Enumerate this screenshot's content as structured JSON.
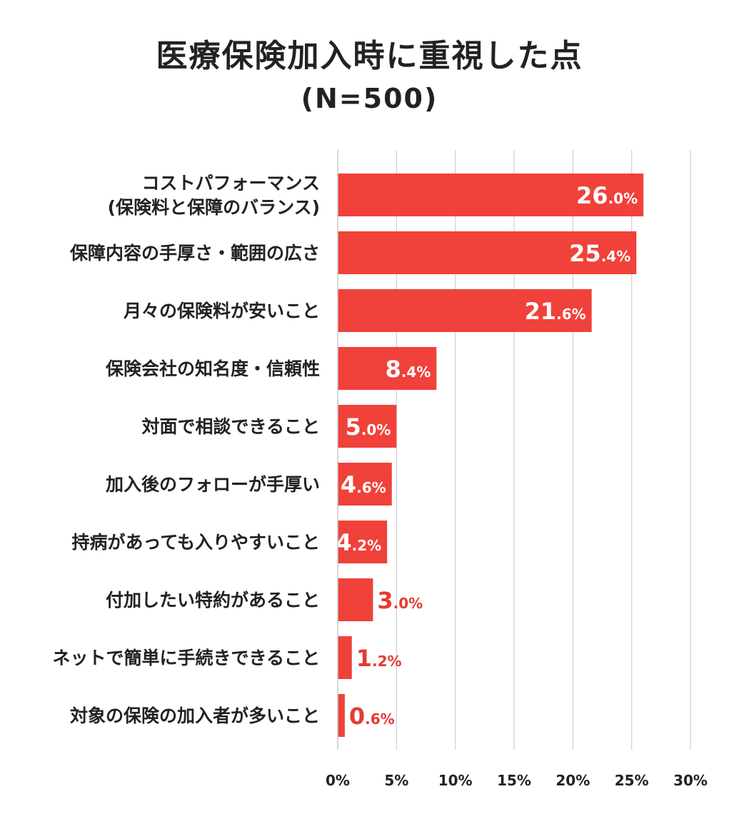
{
  "chart_data": {
    "type": "bar",
    "orientation": "horizontal",
    "title": "医療保険加入時に重視した点",
    "subtitle": "(N=500)",
    "categories": [
      [
        "コストパフォーマンス",
        "(保険料と保障のバランス)"
      ],
      [
        "保障内容の手厚さ・範囲の広さ"
      ],
      [
        "月々の保険料が安いこと"
      ],
      [
        "保険会社の知名度・信頼性"
      ],
      [
        "対面で相談できること"
      ],
      [
        "加入後のフォローが手厚い"
      ],
      [
        "持病があっても入りやすいこと"
      ],
      [
        "付加したい特約があること"
      ],
      [
        "ネットで簡単に手続きできること"
      ],
      [
        "対象の保険の加入者が多いこと"
      ]
    ],
    "values": [
      26.0,
      25.4,
      21.6,
      8.4,
      5.0,
      4.6,
      4.2,
      3.0,
      1.2,
      0.6
    ],
    "value_labels": [
      [
        "26",
        ".0%"
      ],
      [
        "25",
        ".4%"
      ],
      [
        "21",
        ".6%"
      ],
      [
        "8",
        ".4%"
      ],
      [
        "5",
        ".0%"
      ],
      [
        "4",
        ".6%"
      ],
      [
        "4",
        ".2%"
      ],
      [
        "3",
        ".0%"
      ],
      [
        "1",
        ".2%"
      ],
      [
        "0",
        ".6%"
      ]
    ],
    "xlim": [
      0,
      30
    ],
    "xticks": [
      "0%",
      "5%",
      "10%",
      "15%",
      "20%",
      "25%",
      "30%"
    ],
    "grid": true,
    "colors": {
      "bar": "#f0413a",
      "label_inside": "#ffffff",
      "label_outside": "#e53a32",
      "grid": "#d0d0d0",
      "axis": "#c8c8c8",
      "text": "#222222"
    }
  }
}
